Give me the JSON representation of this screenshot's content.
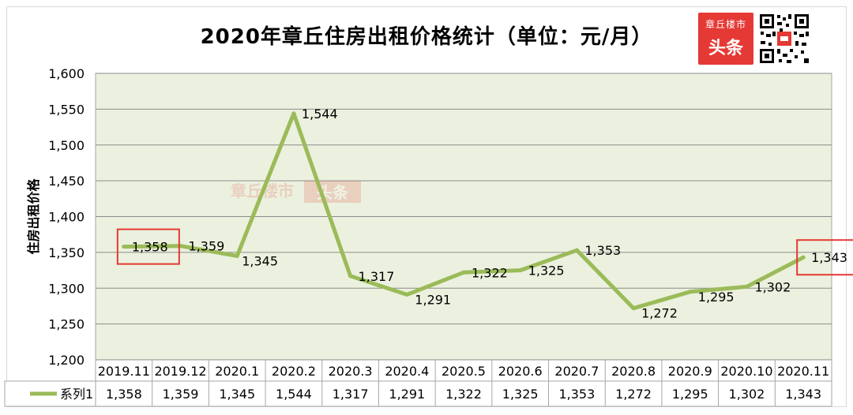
{
  "title": "2020年章丘住房出租价格统计（单位：元/月）",
  "logo": {
    "line1": "章丘楼市",
    "line2": "头条"
  },
  "watermark": {
    "line1": "章丘楼市",
    "line2": "头条"
  },
  "colors": {
    "line": "#9bbb59",
    "plot_bg": "#ebf1de",
    "highlight": "#e53935"
  },
  "chart_data": {
    "type": "line",
    "title": "2020年章丘住房出租价格统计（单位：元/月）",
    "ylabel": "住房出租价格",
    "xlabel": "",
    "categories": [
      "2019.11",
      "2019.12",
      "2020.1",
      "2020.2",
      "2020.3",
      "2020.4",
      "2020.5",
      "2020.6",
      "2020.7",
      "2020.8",
      "2020.9",
      "2020.10",
      "2020.11"
    ],
    "series": [
      {
        "name": "系列1",
        "values": [
          1358,
          1359,
          1345,
          1544,
          1317,
          1291,
          1322,
          1325,
          1353,
          1272,
          1295,
          1302,
          1343
        ]
      }
    ],
    "ylim": [
      1200,
      1600
    ],
    "yticks": [
      1200,
      1250,
      1300,
      1350,
      1400,
      1450,
      1500,
      1550,
      1600
    ],
    "ytick_labels": [
      "1,200",
      "1,250",
      "1,300",
      "1,350",
      "1,400",
      "1,450",
      "1,500",
      "1,550",
      "1,600"
    ],
    "data_labels": [
      "1,358",
      "1,359",
      "1,345",
      "1,544",
      "1,317",
      "1,291",
      "1,322",
      "1,325",
      "1,353",
      "1,272",
      "1,295",
      "1,302",
      "1,343"
    ],
    "grid": true,
    "legend": "data-table",
    "highlighted_points": [
      "2019.11",
      "2020.11"
    ]
  }
}
